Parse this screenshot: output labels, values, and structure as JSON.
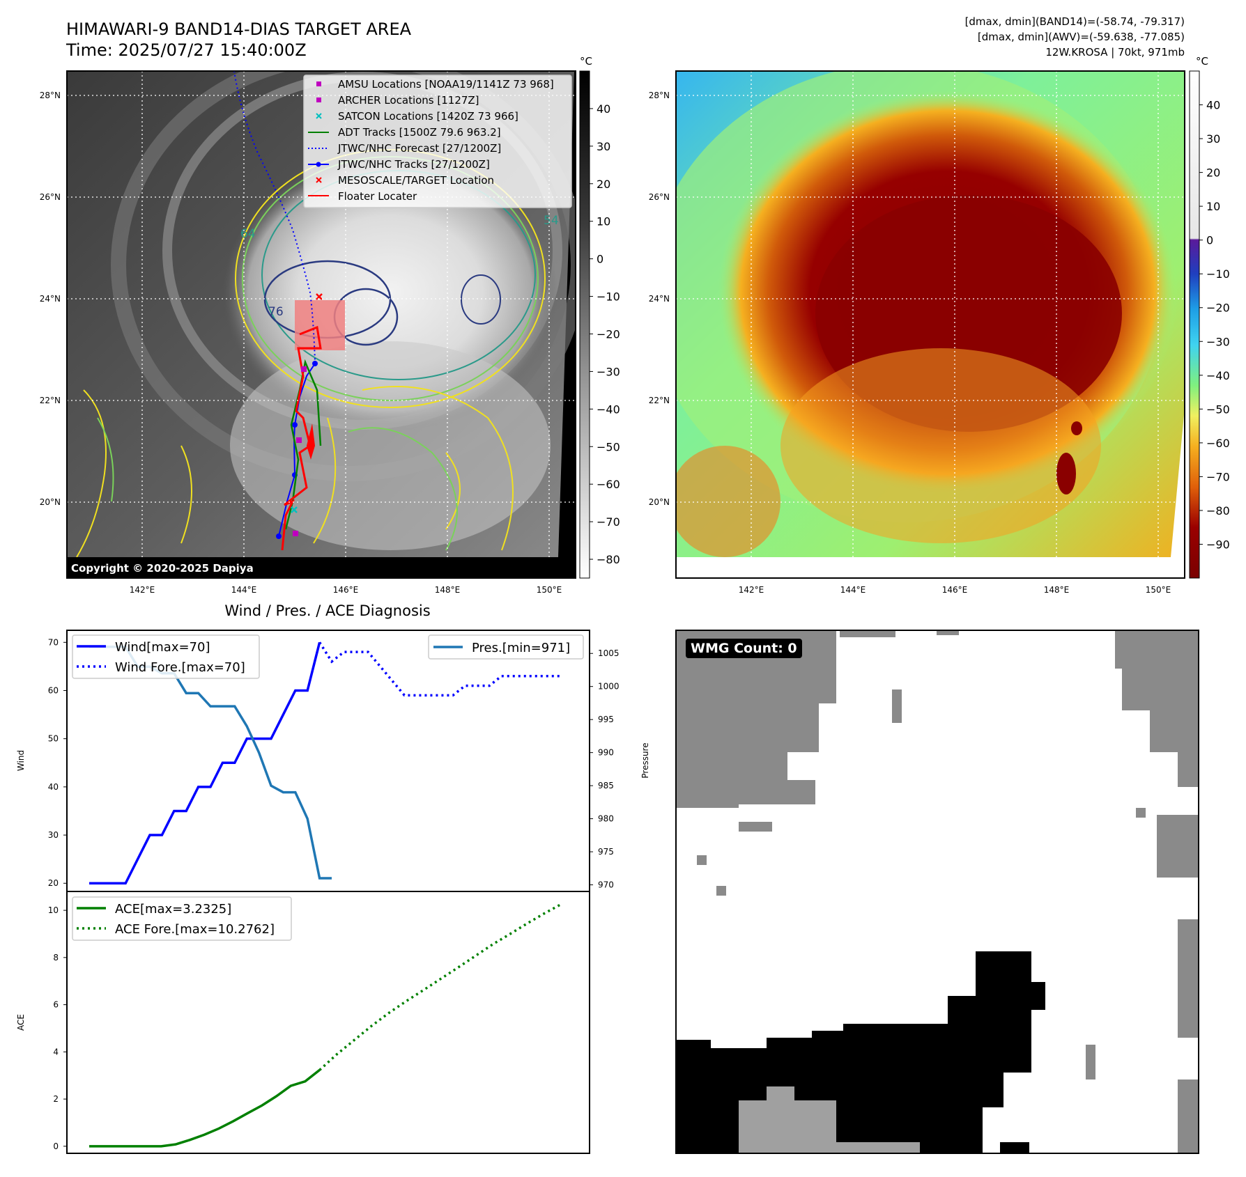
{
  "header": {
    "title_line1": "HIMAWARI-9 BAND14-DIAS TARGET AREA",
    "title_line2": "Time: 2025/07/27 15:40:00Z",
    "right_line1": "[dmax, dmin](BAND14)=(-58.74, -79.317)",
    "right_line2": "[dmax, dmin](AWV)=(-59.638, -77.085)",
    "right_line3": "12W.KROSA | 70kt, 971mb"
  },
  "map_axes": {
    "lon_ticks": [
      "142°E",
      "144°E",
      "146°E",
      "148°E",
      "150°E"
    ],
    "lat_ticks": [
      "28°N",
      "26°N",
      "24°N",
      "22°N",
      "20°N"
    ],
    "xlim": [
      140.5,
      150.5
    ],
    "ylim": [
      18.5,
      28.5
    ]
  },
  "colorbar_left": {
    "unit": "°C",
    "ticks": [
      "40",
      "30",
      "20",
      "10",
      "0",
      "−10",
      "−20",
      "−30",
      "−40",
      "−50",
      "−60",
      "−70",
      "−80"
    ],
    "range": [
      -85,
      50
    ]
  },
  "colorbar_right": {
    "unit": "°C",
    "ticks": [
      "40",
      "30",
      "20",
      "10",
      "0",
      "−10",
      "−20",
      "−30",
      "−40",
      "−50",
      "−60",
      "−70",
      "−80",
      "−90"
    ],
    "range": [
      -100,
      50
    ]
  },
  "legend_map": [
    {
      "label": "AMSU Locations [NOAA19/1141Z 73 968]",
      "marker": "square",
      "color": "#bf00bf"
    },
    {
      "label": "ARCHER Locations [1127Z]",
      "marker": "square",
      "color": "#bf00bf"
    },
    {
      "label": "SATCON Locations [1420Z 73 966]",
      "marker": "x",
      "color": "#00bfbf"
    },
    {
      "label": "ADT Tracks [1500Z 79.6 963.2]",
      "marker": "line",
      "color": "#008000"
    },
    {
      "label": "JTWC/NHC Forecast [27/1200Z]",
      "marker": "dotted",
      "color": "#0000ff"
    },
    {
      "label": "JTWC/NHC Tracks [27/1200Z]",
      "marker": "line-dot",
      "color": "#0000ff"
    },
    {
      "label": "MESOSCALE/TARGET Location",
      "marker": "x",
      "color": "#ff0000"
    },
    {
      "label": "Floater Locater",
      "marker": "line",
      "color": "#ff0000"
    }
  ],
  "contour_labels": [
    "54",
    "64",
    "76",
    "76"
  ],
  "copyright": "Copyright © 2020-2025 Dapiya",
  "wmg_label": "WMG Count: 0",
  "chart_data": [
    {
      "type": "line",
      "title": "Wind / Pres. / ACE Diagnosis",
      "ylabel": "Wind",
      "y2label": "Pressure",
      "ylim": [
        18.3,
        72.5
      ],
      "y2lim": [
        969,
        1008.5
      ],
      "yticks": [
        20,
        30,
        40,
        50,
        60,
        70
      ],
      "y2ticks": [
        970,
        975,
        980,
        985,
        990,
        995,
        1000,
        1005
      ],
      "series": [
        {
          "name": "Wind[max=70]",
          "axis": "left",
          "style": "solid",
          "color": "#0000ff",
          "values": [
            20,
            20,
            20,
            20,
            25,
            30,
            30,
            35,
            35,
            40,
            40,
            45,
            45,
            50,
            50,
            50,
            55,
            60,
            60,
            70
          ]
        },
        {
          "name": "Wind Fore.[max=70]",
          "axis": "left",
          "style": "dotted",
          "color": "#0000ff",
          "values": [
            70,
            66,
            68,
            68,
            68,
            65,
            62,
            59,
            59,
            59,
            59,
            59,
            61,
            61,
            61,
            63,
            63,
            63,
            63,
            63,
            63
          ]
        },
        {
          "name": "Pres.[min=971]",
          "axis": "right",
          "style": "solid",
          "color": "#1f77b4",
          "values": [
            1006,
            1006,
            1006,
            1006,
            1003,
            1003,
            1002,
            1002,
            999,
            999,
            997,
            997,
            997,
            994,
            990,
            985,
            984,
            984,
            980,
            971,
            971
          ]
        }
      ],
      "legend_left": [
        "Wind[max=70]",
        "Wind Fore.[max=70]"
      ],
      "legend_right": [
        "Pres.[min=971]"
      ]
    },
    {
      "type": "line",
      "ylabel": "ACE",
      "ylim": [
        -0.3,
        10.8
      ],
      "yticks": [
        0,
        2,
        4,
        6,
        8,
        10
      ],
      "series": [
        {
          "name": "ACE[max=3.2325]",
          "style": "solid",
          "color": "#008000",
          "values": [
            0,
            0,
            0,
            0,
            0,
            0,
            0.08,
            0.27,
            0.49,
            0.75,
            1.06,
            1.4,
            1.73,
            2.12,
            2.56,
            2.75,
            3.23
          ]
        },
        {
          "name": "ACE Fore.[max=10.2762]",
          "style": "dotted",
          "color": "#008000",
          "values": [
            3.23,
            3.9,
            4.5,
            5.1,
            5.65,
            6.15,
            6.62,
            7.1,
            7.58,
            8.07,
            8.56,
            9.0,
            9.45,
            9.88,
            10.28
          ]
        }
      ]
    }
  ]
}
